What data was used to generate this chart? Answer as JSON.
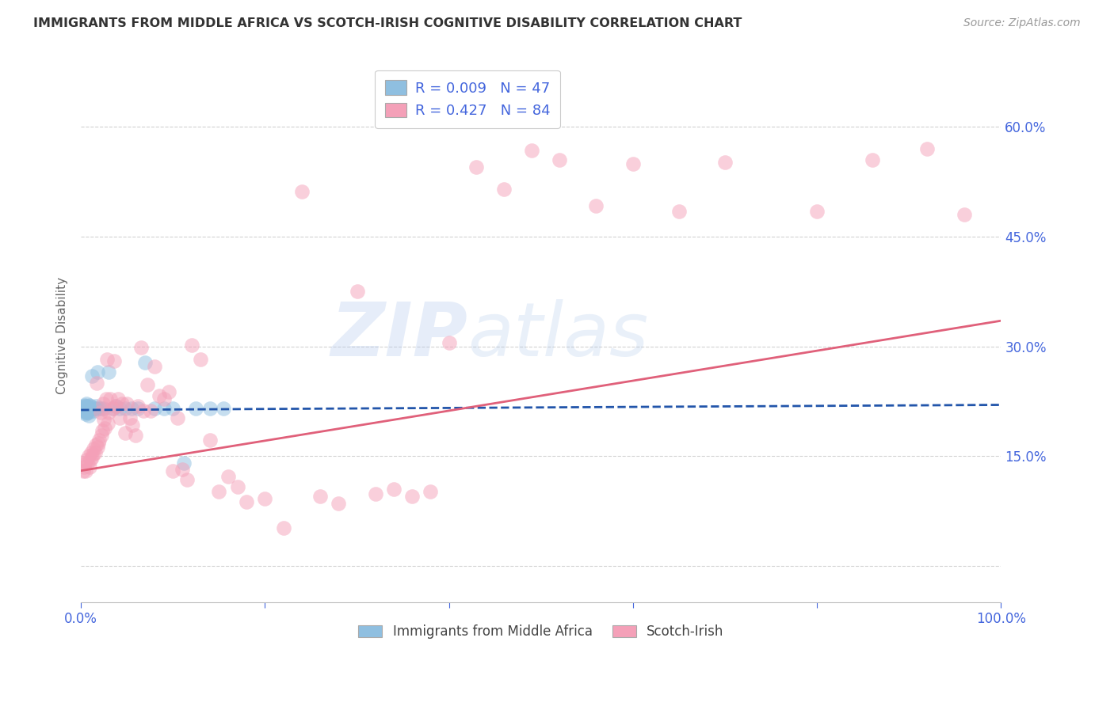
{
  "title": "IMMIGRANTS FROM MIDDLE AFRICA VS SCOTCH-IRISH COGNITIVE DISABILITY CORRELATION CHART",
  "source": "Source: ZipAtlas.com",
  "ylabel": "Cognitive Disability",
  "right_yticks": [
    0.0,
    0.15,
    0.3,
    0.45,
    0.6
  ],
  "right_yticklabels": [
    "",
    "15.0%",
    "30.0%",
    "45.0%",
    "60.0%"
  ],
  "xlim": [
    0.0,
    1.0
  ],
  "ylim": [
    -0.05,
    0.68
  ],
  "series1_label": "Immigrants from Middle Africa",
  "series1_R": "0.009",
  "series1_N": "47",
  "series1_color": "#8fbfe0",
  "series1_line_color": "#2255aa",
  "series1_line_style": "--",
  "series2_label": "Scotch-Irish",
  "series2_R": "0.427",
  "series2_N": "84",
  "series2_color": "#f4a0b8",
  "series2_line_color": "#e0607a",
  "series2_line_style": "-",
  "watermark": "ZIPAtlas",
  "bg_color": "#ffffff",
  "grid_color": "#cccccc",
  "tick_label_color": "#4466dd",
  "series1_x": [
    0.002,
    0.003,
    0.003,
    0.004,
    0.004,
    0.005,
    0.005,
    0.005,
    0.006,
    0.006,
    0.006,
    0.007,
    0.007,
    0.007,
    0.008,
    0.008,
    0.008,
    0.009,
    0.009,
    0.01,
    0.01,
    0.011,
    0.012,
    0.013,
    0.014,
    0.015,
    0.016,
    0.017,
    0.018,
    0.02,
    0.022,
    0.025,
    0.03,
    0.035,
    0.038,
    0.042,
    0.048,
    0.055,
    0.062,
    0.07,
    0.08,
    0.09,
    0.1,
    0.112,
    0.125,
    0.14,
    0.155
  ],
  "series1_y": [
    0.215,
    0.218,
    0.212,
    0.21,
    0.22,
    0.218,
    0.212,
    0.208,
    0.215,
    0.21,
    0.222,
    0.215,
    0.21,
    0.218,
    0.215,
    0.21,
    0.205,
    0.215,
    0.22,
    0.215,
    0.218,
    0.215,
    0.26,
    0.215,
    0.212,
    0.215,
    0.218,
    0.215,
    0.265,
    0.215,
    0.215,
    0.215,
    0.265,
    0.215,
    0.218,
    0.215,
    0.215,
    0.215,
    0.215,
    0.278,
    0.215,
    0.215,
    0.215,
    0.14,
    0.215,
    0.215,
    0.215
  ],
  "series2_x": [
    0.002,
    0.003,
    0.004,
    0.005,
    0.006,
    0.007,
    0.008,
    0.009,
    0.01,
    0.011,
    0.012,
    0.013,
    0.014,
    0.015,
    0.016,
    0.017,
    0.018,
    0.019,
    0.02,
    0.021,
    0.022,
    0.023,
    0.024,
    0.025,
    0.026,
    0.027,
    0.028,
    0.029,
    0.03,
    0.032,
    0.034,
    0.036,
    0.038,
    0.04,
    0.042,
    0.045,
    0.048,
    0.05,
    0.053,
    0.056,
    0.059,
    0.062,
    0.065,
    0.068,
    0.072,
    0.076,
    0.08,
    0.085,
    0.09,
    0.095,
    0.1,
    0.105,
    0.11,
    0.115,
    0.12,
    0.13,
    0.14,
    0.15,
    0.16,
    0.17,
    0.18,
    0.2,
    0.22,
    0.24,
    0.26,
    0.28,
    0.3,
    0.32,
    0.34,
    0.36,
    0.38,
    0.4,
    0.43,
    0.46,
    0.49,
    0.52,
    0.56,
    0.6,
    0.65,
    0.7,
    0.8,
    0.86,
    0.92,
    0.96
  ],
  "series2_y": [
    0.13,
    0.135,
    0.14,
    0.13,
    0.145,
    0.14,
    0.15,
    0.135,
    0.145,
    0.155,
    0.148,
    0.152,
    0.16,
    0.155,
    0.165,
    0.25,
    0.162,
    0.168,
    0.172,
    0.21,
    0.178,
    0.185,
    0.222,
    0.2,
    0.188,
    0.228,
    0.282,
    0.195,
    0.21,
    0.228,
    0.215,
    0.28,
    0.218,
    0.228,
    0.202,
    0.222,
    0.182,
    0.222,
    0.202,
    0.192,
    0.178,
    0.218,
    0.298,
    0.212,
    0.248,
    0.212,
    0.272,
    0.232,
    0.228,
    0.238,
    0.13,
    0.202,
    0.132,
    0.118,
    0.302,
    0.282,
    0.172,
    0.102,
    0.122,
    0.108,
    0.088,
    0.092,
    0.052,
    0.512,
    0.095,
    0.085,
    0.375,
    0.098,
    0.105,
    0.095,
    0.102,
    0.305,
    0.545,
    0.515,
    0.568,
    0.555,
    0.492,
    0.55,
    0.485,
    0.552,
    0.485,
    0.555,
    0.57,
    0.48
  ],
  "trend1_x0": 0.0,
  "trend1_x1": 1.0,
  "trend1_y0": 0.213,
  "trend1_y1": 0.22,
  "trend2_x0": 0.0,
  "trend2_x1": 1.0,
  "trend2_y0": 0.13,
  "trend2_y1": 0.335
}
